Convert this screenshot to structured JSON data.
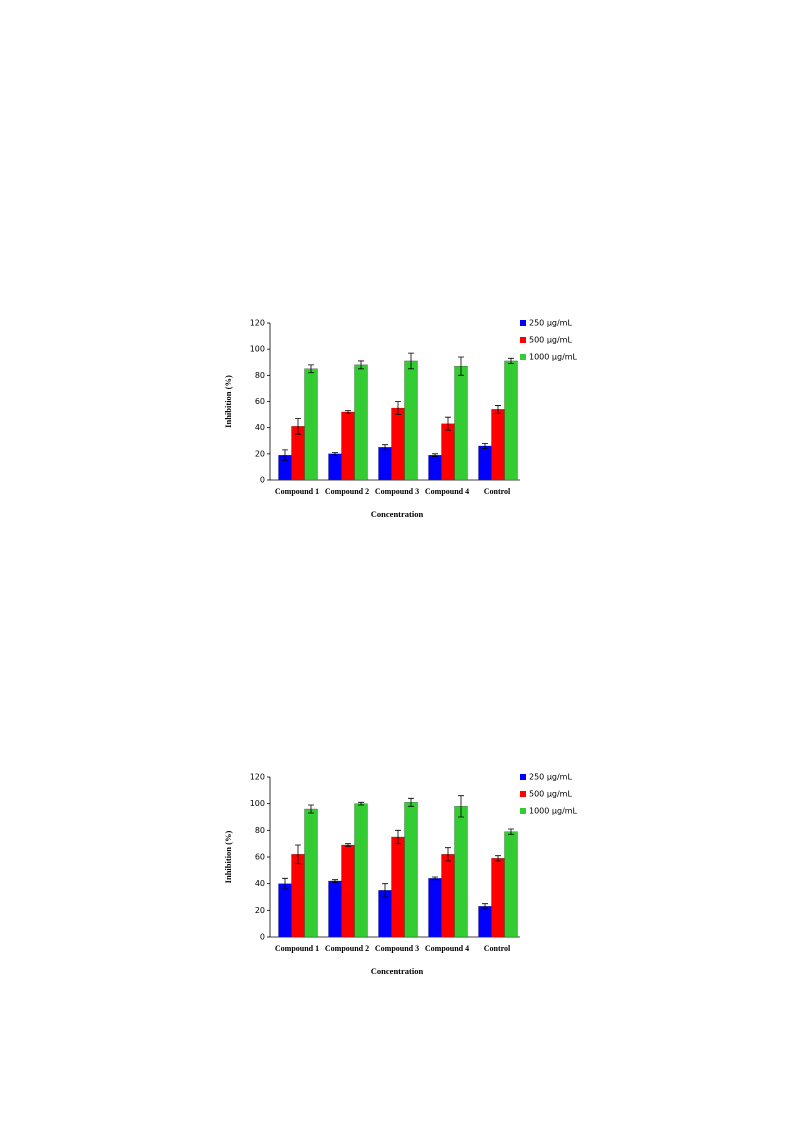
{
  "chart_data": [
    {
      "type": "bar",
      "x_label": "Concentration",
      "y_label": "Inhibition  (%)",
      "categories": [
        "Compound 1",
        "Compound 2",
        "Compound 3",
        "Compound 4",
        "Control"
      ],
      "ylim": [
        0,
        120
      ],
      "yticks": [
        0,
        20,
        40,
        60,
        80,
        100,
        120
      ],
      "legend": "right",
      "series": [
        {
          "name": "250 µg/mL",
          "color": "#0000ff",
          "values": [
            19,
            20,
            25,
            19,
            26
          ],
          "errors": [
            4,
            1,
            2,
            1,
            2
          ]
        },
        {
          "name": "500 µg/mL",
          "color": "#ff0000",
          "values": [
            41,
            52,
            55,
            43,
            54
          ],
          "errors": [
            6,
            1,
            5,
            5,
            3
          ]
        },
        {
          "name": "1000 µg/mL",
          "color": "#33cc33",
          "values": [
            85,
            88,
            91,
            87,
            91
          ],
          "errors": [
            3,
            3,
            6,
            7,
            2
          ]
        }
      ]
    },
    {
      "type": "bar",
      "x_label": "Concentration",
      "y_label": "Inhibition  (%)",
      "categories": [
        "Compound 1",
        "Compound 2",
        "Compound 3",
        "Compound 4",
        "Control"
      ],
      "ylim": [
        0,
        120
      ],
      "yticks": [
        0,
        20,
        40,
        60,
        80,
        100,
        120
      ],
      "legend": "right",
      "series": [
        {
          "name": "250 µg/mL",
          "color": "#0000ff",
          "values": [
            40,
            42,
            35,
            44,
            23
          ],
          "errors": [
            4,
            1,
            5,
            1,
            2
          ]
        },
        {
          "name": "500 µg/mL",
          "color": "#ff0000",
          "values": [
            62,
            69,
            75,
            62,
            59
          ],
          "errors": [
            7,
            1,
            5,
            5,
            2
          ]
        },
        {
          "name": "1000 µg/mL",
          "color": "#33cc33",
          "values": [
            96,
            100,
            101,
            98,
            79
          ],
          "errors": [
            3,
            1,
            3,
            8,
            2
          ]
        }
      ]
    }
  ]
}
